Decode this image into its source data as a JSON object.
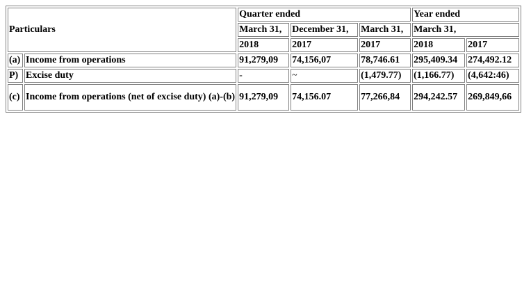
{
  "header": {
    "particulars": "Particulars",
    "quarter_ended": "Quarter ended",
    "year_ended": "Year ended",
    "dates": [
      "March 31,",
      "December 31,",
      "March 31,",
      "March 31,",
      ""
    ],
    "years": [
      "2018",
      "2017",
      "2017",
      "2018",
      "2017"
    ]
  },
  "rows": [
    {
      "label": "(a)",
      "particular": "Income from operations",
      "values": [
        "91,279,09",
        "74,156,07",
        "78,746.61",
        "295,409.34",
        "274,492.12"
      ]
    },
    {
      "label": "P)",
      "particular": "Excise duty",
      "values": [
        "-",
        "~",
        "(1,479.77)",
        "(1,166.77)",
        "(4,642:46)"
      ]
    },
    {
      "label": "(c)",
      "particular": "Income from operations (net of excise duty) (a)-(b)",
      "values": [
        "91,279,09",
        "74,156.07",
        "77,266,84",
        "294,242.57",
        "269,849,66"
      ]
    }
  ]
}
